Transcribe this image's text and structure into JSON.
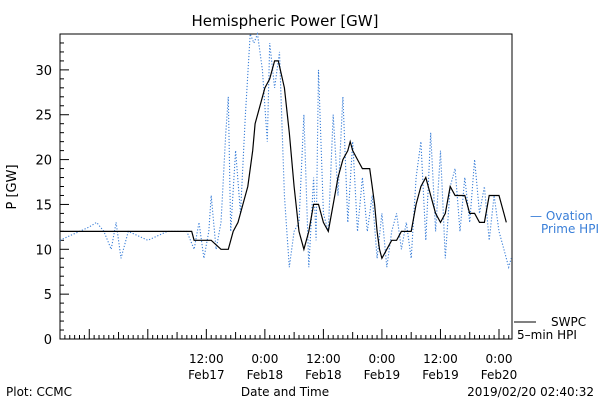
{
  "chart_data": {
    "type": "line",
    "title": "Hemispheric Power [GW]",
    "xlabel": "Date and Time",
    "ylabel": "P [GW]",
    "xlim": [
      "2019-02-16T06:00",
      "2019-02-20T02:40"
    ],
    "ylim": [
      0,
      34
    ],
    "yticks": [
      0,
      5,
      10,
      15,
      20,
      25,
      30
    ],
    "xticks": [
      {
        "t": "2019-02-17T12:00",
        "top": "12:00",
        "bottom": "Feb17"
      },
      {
        "t": "2019-02-18T00:00",
        "top": "0:00",
        "bottom": "Feb18"
      },
      {
        "t": "2019-02-18T12:00",
        "top": "12:00",
        "bottom": "Feb18"
      },
      {
        "t": "2019-02-19T00:00",
        "top": "0:00",
        "bottom": "Feb19"
      },
      {
        "t": "2019-02-19T12:00",
        "top": "12:00",
        "bottom": "Feb19"
      },
      {
        "t": "2019-02-20T00:00",
        "top": "0:00",
        "bottom": "Feb20"
      }
    ],
    "series": [
      {
        "name": "SWPC 5-min HPI",
        "color": "#000000",
        "style": "solid",
        "points": [
          [
            "2019-02-16T06:00",
            12
          ],
          [
            "2019-02-17T09:00",
            12
          ],
          [
            "2019-02-17T09:30",
            11
          ],
          [
            "2019-02-17T10:30",
            11
          ],
          [
            "2019-02-17T11:00",
            11
          ],
          [
            "2019-02-17T13:00",
            11
          ],
          [
            "2019-02-17T15:00",
            10
          ],
          [
            "2019-02-17T16:30",
            10
          ],
          [
            "2019-02-17T17:30",
            12
          ],
          [
            "2019-02-17T18:30",
            13
          ],
          [
            "2019-02-17T19:30",
            15
          ],
          [
            "2019-02-17T20:30",
            17
          ],
          [
            "2019-02-17T21:30",
            21
          ],
          [
            "2019-02-17T22:00",
            24
          ],
          [
            "2019-02-17T23:00",
            26
          ],
          [
            "2019-02-18T00:00",
            28
          ],
          [
            "2019-02-18T01:00",
            29
          ],
          [
            "2019-02-18T02:00",
            31
          ],
          [
            "2019-02-18T02:45",
            31
          ],
          [
            "2019-02-18T04:00",
            28
          ],
          [
            "2019-02-18T05:00",
            23
          ],
          [
            "2019-02-18T06:00",
            17
          ],
          [
            "2019-02-18T07:00",
            12
          ],
          [
            "2019-02-18T08:00",
            10
          ],
          [
            "2019-02-18T09:00",
            12
          ],
          [
            "2019-02-18T10:00",
            15
          ],
          [
            "2019-02-18T11:00",
            15
          ],
          [
            "2019-02-18T12:00",
            13
          ],
          [
            "2019-02-18T13:00",
            12
          ],
          [
            "2019-02-18T14:00",
            15
          ],
          [
            "2019-02-18T15:00",
            18
          ],
          [
            "2019-02-18T16:00",
            20
          ],
          [
            "2019-02-18T17:00",
            21
          ],
          [
            "2019-02-18T17:30",
            22
          ],
          [
            "2019-02-18T18:00",
            21
          ],
          [
            "2019-02-18T19:00",
            20
          ],
          [
            "2019-02-18T20:00",
            19
          ],
          [
            "2019-02-18T21:30",
            19
          ],
          [
            "2019-02-18T22:00",
            17
          ],
          [
            "2019-02-18T22:30",
            15
          ],
          [
            "2019-02-18T23:00",
            12
          ],
          [
            "2019-02-18T23:30",
            10
          ],
          [
            "2019-02-19T00:00",
            9
          ],
          [
            "2019-02-19T01:00",
            10
          ],
          [
            "2019-02-19T02:00",
            11
          ],
          [
            "2019-02-19T03:00",
            11
          ],
          [
            "2019-02-19T04:00",
            12
          ],
          [
            "2019-02-19T05:00",
            12
          ],
          [
            "2019-02-19T06:00",
            12
          ],
          [
            "2019-02-19T07:00",
            15
          ],
          [
            "2019-02-19T08:00",
            17
          ],
          [
            "2019-02-19T09:00",
            18
          ],
          [
            "2019-02-19T10:00",
            16
          ],
          [
            "2019-02-19T11:00",
            14
          ],
          [
            "2019-02-19T12:00",
            13
          ],
          [
            "2019-02-19T13:00",
            14
          ],
          [
            "2019-02-19T14:00",
            17
          ],
          [
            "2019-02-19T15:00",
            16
          ],
          [
            "2019-02-19T16:00",
            16
          ],
          [
            "2019-02-19T17:00",
            16
          ],
          [
            "2019-02-19T18:00",
            14
          ],
          [
            "2019-02-19T19:00",
            14
          ],
          [
            "2019-02-19T20:00",
            13
          ],
          [
            "2019-02-19T21:00",
            13
          ],
          [
            "2019-02-19T22:00",
            16
          ],
          [
            "2019-02-20T00:00",
            16
          ],
          [
            "2019-02-20T01:00",
            14
          ],
          [
            "2019-02-20T01:30",
            13
          ]
        ]
      },
      {
        "name": "Ovation Prime HPI",
        "color": "#3a7fd8",
        "style": "dotted",
        "points": [
          [
            "2019-02-16T06:00",
            11
          ],
          [
            "2019-02-16T08:00",
            11.5
          ],
          [
            "2019-02-16T10:00",
            12
          ],
          [
            "2019-02-16T12:00",
            12.5
          ],
          [
            "2019-02-16T13:30",
            13
          ],
          [
            "2019-02-16T15:00",
            12
          ],
          [
            "2019-02-16T16:30",
            10
          ],
          [
            "2019-02-16T17:30",
            13
          ],
          [
            "2019-02-16T18:30",
            9
          ],
          [
            "2019-02-16T20:00",
            12
          ],
          [
            "2019-02-17T00:00",
            11
          ],
          [
            "2019-02-17T04:00",
            12
          ],
          [
            "2019-02-17T08:00",
            12
          ],
          [
            "2019-02-17T09:30",
            10
          ],
          [
            "2019-02-17T10:30",
            13
          ],
          [
            "2019-02-17T11:30",
            9
          ],
          [
            "2019-02-17T12:30",
            12
          ],
          [
            "2019-02-17T13:00",
            16
          ],
          [
            "2019-02-17T14:00",
            10
          ],
          [
            "2019-02-17T15:00",
            13
          ],
          [
            "2019-02-17T16:00",
            23
          ],
          [
            "2019-02-17T16:30",
            27
          ],
          [
            "2019-02-17T17:00",
            12
          ],
          [
            "2019-02-17T18:00",
            21
          ],
          [
            "2019-02-17T19:00",
            14
          ],
          [
            "2019-02-17T20:00",
            25
          ],
          [
            "2019-02-17T21:00",
            34
          ],
          [
            "2019-02-17T21:45",
            33
          ],
          [
            "2019-02-17T22:30",
            34
          ],
          [
            "2019-02-17T23:30",
            30
          ],
          [
            "2019-02-18T00:30",
            22
          ],
          [
            "2019-02-18T01:00",
            33
          ],
          [
            "2019-02-18T02:00",
            28
          ],
          [
            "2019-02-18T03:00",
            32
          ],
          [
            "2019-02-18T04:00",
            16
          ],
          [
            "2019-02-18T05:00",
            8
          ],
          [
            "2019-02-18T06:00",
            12
          ],
          [
            "2019-02-18T07:00",
            13
          ],
          [
            "2019-02-18T08:00",
            25
          ],
          [
            "2019-02-18T09:00",
            8
          ],
          [
            "2019-02-18T10:00",
            18
          ],
          [
            "2019-02-18T10:30",
            11
          ],
          [
            "2019-02-18T11:00",
            30
          ],
          [
            "2019-02-18T12:00",
            14
          ],
          [
            "2019-02-18T13:00",
            12
          ],
          [
            "2019-02-18T14:00",
            25
          ],
          [
            "2019-02-18T15:00",
            16
          ],
          [
            "2019-02-18T16:00",
            27
          ],
          [
            "2019-02-18T17:00",
            13
          ],
          [
            "2019-02-18T18:00",
            22
          ],
          [
            "2019-02-18T19:00",
            12
          ],
          [
            "2019-02-18T20:00",
            18
          ],
          [
            "2019-02-18T21:00",
            12
          ],
          [
            "2019-02-18T22:00",
            16
          ],
          [
            "2019-02-18T23:00",
            9
          ],
          [
            "2019-02-19T00:00",
            14
          ],
          [
            "2019-02-19T01:00",
            8
          ],
          [
            "2019-02-19T02:00",
            12
          ],
          [
            "2019-02-19T03:00",
            14
          ],
          [
            "2019-02-19T04:00",
            10
          ],
          [
            "2019-02-19T05:00",
            13
          ],
          [
            "2019-02-19T06:00",
            9
          ],
          [
            "2019-02-19T07:00",
            18
          ],
          [
            "2019-02-19T08:00",
            22
          ],
          [
            "2019-02-19T09:00",
            11
          ],
          [
            "2019-02-19T10:00",
            23
          ],
          [
            "2019-02-19T11:00",
            12
          ],
          [
            "2019-02-19T12:00",
            21
          ],
          [
            "2019-02-19T13:00",
            9
          ],
          [
            "2019-02-19T14:00",
            17
          ],
          [
            "2019-02-19T15:00",
            19
          ],
          [
            "2019-02-19T16:00",
            12
          ],
          [
            "2019-02-19T17:00",
            18
          ],
          [
            "2019-02-19T18:00",
            13
          ],
          [
            "2019-02-19T19:00",
            20
          ],
          [
            "2019-02-19T20:00",
            14
          ],
          [
            "2019-02-19T21:00",
            17
          ],
          [
            "2019-02-19T22:00",
            11
          ],
          [
            "2019-02-19T23:00",
            16
          ],
          [
            "2019-02-20T00:00",
            12
          ],
          [
            "2019-02-20T01:00",
            10
          ],
          [
            "2019-02-20T02:00",
            8
          ],
          [
            "2019-02-20T02:30",
            9
          ]
        ]
      }
    ],
    "legend": {
      "ovation": [
        "— Ovation",
        "Prime HPI"
      ],
      "swpc": [
        "SWPC",
        "5–min HPI"
      ],
      "placement": "right"
    },
    "grid": false
  },
  "footer": {
    "left": "Plot: CCMC",
    "center": "Date and Time",
    "right": "2019/02/20 02:40:32"
  }
}
